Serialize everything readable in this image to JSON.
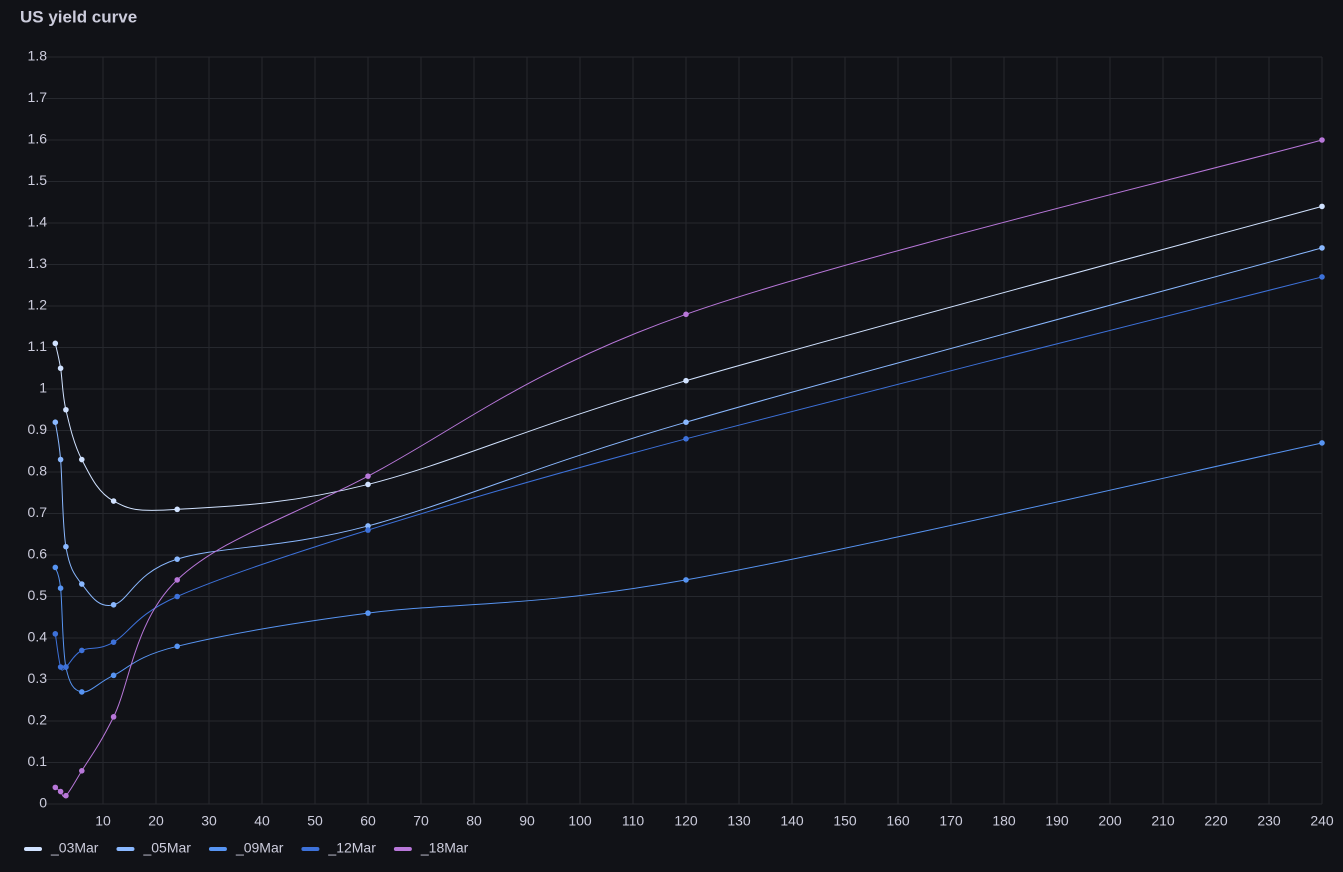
{
  "chart_data": {
    "type": "line",
    "title": "US yield curve",
    "x": [
      1,
      2,
      3,
      6,
      12,
      24,
      60,
      120,
      240
    ],
    "series": [
      {
        "name": "_03Mar",
        "color": "#d1e2ff",
        "values": [
          1.11,
          1.05,
          0.95,
          0.83,
          0.73,
          0.71,
          0.77,
          1.02,
          1.44
        ]
      },
      {
        "name": "_05Mar",
        "color": "#8ab8ff",
        "values": [
          0.92,
          0.83,
          0.62,
          0.53,
          0.48,
          0.59,
          0.67,
          0.92,
          1.34
        ]
      },
      {
        "name": "_09Mar",
        "color": "#5794f2",
        "values": [
          0.57,
          0.52,
          0.33,
          0.27,
          0.31,
          0.38,
          0.46,
          0.54,
          0.87
        ]
      },
      {
        "name": "_12Mar",
        "color": "#3d71d9",
        "values": [
          0.41,
          0.33,
          0.33,
          0.37,
          0.39,
          0.5,
          0.66,
          0.88,
          1.27
        ]
      },
      {
        "name": "_18Mar",
        "color": "#b877d9",
        "values": [
          0.04,
          0.03,
          0.02,
          0.08,
          0.21,
          0.54,
          0.79,
          1.18,
          1.6
        ]
      }
    ],
    "xlim": [
      0,
      240
    ],
    "xticks": [
      10,
      20,
      30,
      40,
      50,
      60,
      70,
      80,
      90,
      100,
      110,
      120,
      130,
      140,
      150,
      160,
      170,
      180,
      190,
      200,
      210,
      220,
      230,
      240
    ],
    "ylim": [
      0,
      1.8
    ],
    "yticks": [
      0,
      0.1,
      0.2,
      0.3,
      0.4,
      0.5,
      0.6,
      0.7,
      0.8,
      0.9,
      1,
      1.1,
      1.2,
      1.3,
      1.4,
      1.5,
      1.6,
      1.7,
      1.8
    ],
    "grid": true,
    "legend": "bottom"
  }
}
